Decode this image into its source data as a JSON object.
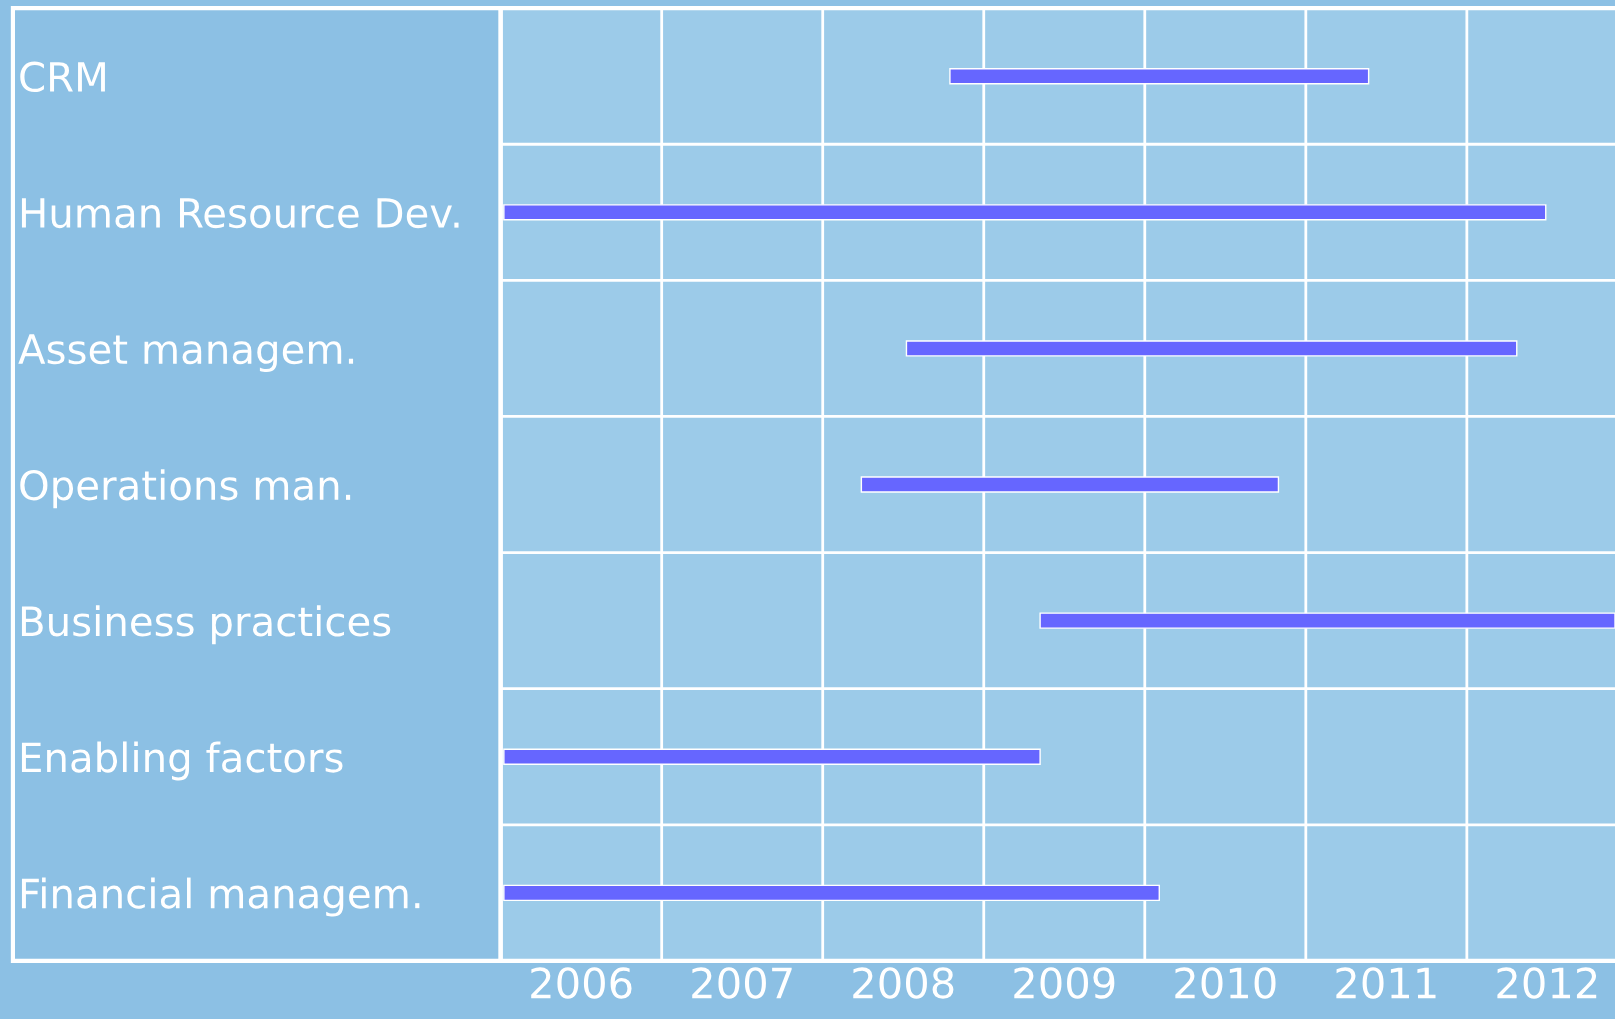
{
  "chart_data": {
    "type": "bar",
    "orientation": "horizontal",
    "categories": [
      "CRM",
      "Human Resource Dev.",
      "Asset managem.",
      "Operations man.",
      "Business practices",
      "Enabling factors",
      "Financial managem."
    ],
    "base": [
      2008.79,
      2006.02,
      2008.52,
      2008.24,
      2009.35,
      2006.02,
      2006.02
    ],
    "values": [
      2.6,
      6.47,
      3.79,
      2.59,
      3.57,
      3.33,
      4.07
    ],
    "color": "#6666ff",
    "xlim": [
      2006,
      2012.92
    ],
    "xticks": [
      {
        "value": 2006.5,
        "label": "2006"
      },
      {
        "value": 2007.5,
        "label": "2007"
      },
      {
        "value": 2008.5,
        "label": "2008"
      },
      {
        "value": 2009.5,
        "label": "2009"
      },
      {
        "value": 2010.5,
        "label": "2010"
      },
      {
        "value": 2011.5,
        "label": "2011"
      },
      {
        "value": 2012.5,
        "label": "2012"
      }
    ],
    "grid": true
  }
}
